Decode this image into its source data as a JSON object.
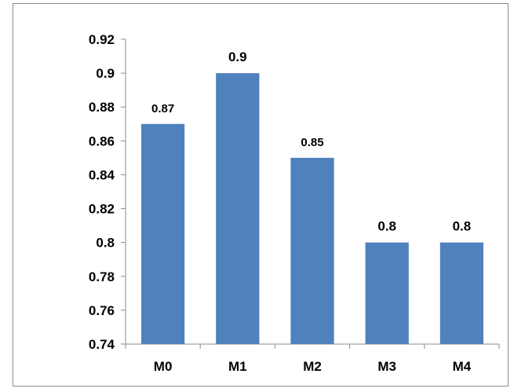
{
  "chart_data": {
    "type": "bar",
    "categories": [
      "M0",
      "M1",
      "M2",
      "M3",
      "M4"
    ],
    "values": [
      0.87,
      0.9,
      0.85,
      0.8,
      0.8
    ],
    "data_labels": [
      "0.87",
      "0.9",
      "0.85",
      "0.8",
      "0.8"
    ],
    "title": "",
    "xlabel": "",
    "ylabel": "",
    "ylim": [
      0.74,
      0.92
    ],
    "yticks": [
      0.74,
      0.76,
      0.78,
      0.8,
      0.82,
      0.84,
      0.86,
      0.88,
      0.9,
      0.92
    ],
    "ytick_labels": [
      "0.74",
      "0.76",
      "0.78",
      "0.8",
      "0.82",
      "0.84",
      "0.86",
      "0.88",
      "0.9",
      "0.92"
    ],
    "grid": false,
    "legend": "none",
    "bar_color": "#4f81bd",
    "axis_color": "#8c8c8c"
  }
}
